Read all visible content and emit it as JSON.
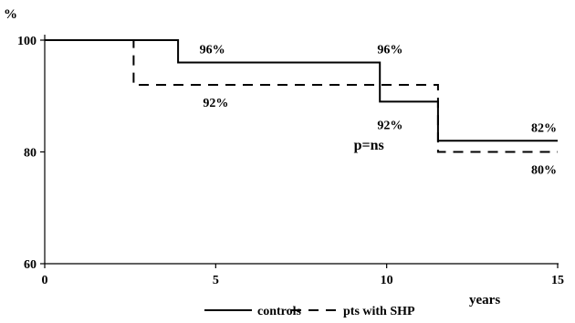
{
  "chart_data": {
    "type": "line",
    "title": "",
    "xlabel": "years",
    "ylabel": "%",
    "xlim": [
      0,
      15
    ],
    "ylim": [
      60,
      100
    ],
    "x_ticks": [
      0,
      5,
      10,
      15
    ],
    "y_ticks": [
      60,
      80,
      100
    ],
    "grid": false,
    "legend_position": "bottom",
    "series": [
      {
        "name": "controls",
        "style": "solid",
        "steps": [
          [
            0,
            100
          ],
          [
            3.9,
            100
          ],
          [
            3.9,
            96
          ],
          [
            9.8,
            96
          ],
          [
            9.8,
            89
          ],
          [
            11.5,
            89
          ],
          [
            11.5,
            82
          ],
          [
            15,
            82
          ]
        ],
        "labels": [
          {
            "text": "96%",
            "x": 4.9,
            "y": 96
          },
          {
            "text": "96%",
            "x": 10.1,
            "y": 96
          },
          {
            "text": "92%",
            "x": 10.1,
            "y": 89
          },
          {
            "text": "82%",
            "x": 14.6,
            "y": 82
          }
        ]
      },
      {
        "name": "pts with SHP",
        "style": "dashed",
        "steps": [
          [
            0,
            100
          ],
          [
            2.6,
            100
          ],
          [
            2.6,
            92
          ],
          [
            11.5,
            92
          ],
          [
            11.5,
            80
          ],
          [
            15,
            80
          ]
        ],
        "labels": [
          {
            "text": "92%",
            "x": 5.0,
            "y": 92
          },
          {
            "text": "80%",
            "x": 14.6,
            "y": 80
          }
        ]
      }
    ],
    "annotations": [
      {
        "text": "p=ns",
        "x": 9.8,
        "y": 84
      }
    ]
  }
}
